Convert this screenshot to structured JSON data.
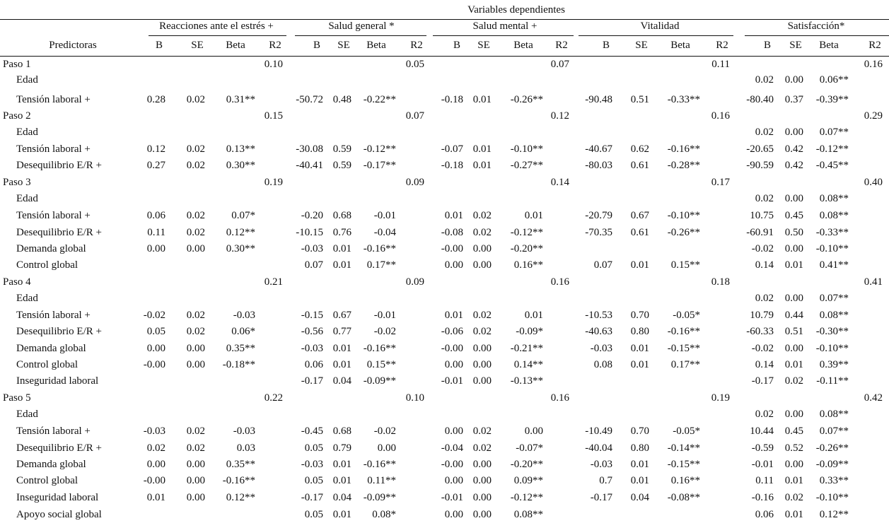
{
  "table": {
    "title": "Variables dependientes",
    "predictors_label": "Predictoras",
    "groups": [
      {
        "name": "Reacciones ante el estrés +"
      },
      {
        "name": "Salud general *"
      },
      {
        "name": "Salud mental +"
      },
      {
        "name": "Vitalidad"
      },
      {
        "name": "Satisfacción*"
      }
    ],
    "stat_labels": [
      "B",
      "SE",
      "Beta",
      "R2"
    ],
    "rows": [
      {
        "label": "Paso 1",
        "step": true,
        "r2": [
          "0.10",
          "0.05",
          "0.07",
          "0.11",
          "0.16"
        ]
      },
      {
        "label": "Edad",
        "vals": [
          null,
          null,
          null,
          null,
          [
            "0.02",
            "0.00",
            "0.06**"
          ]
        ]
      },
      {
        "label": "Tensión laboral +",
        "vals": [
          [
            "0.28",
            "0.02",
            "0.31**"
          ],
          [
            "-50.72",
            "0.48",
            "-0.22**"
          ],
          [
            "-0.18",
            "0.01",
            "-0.26**"
          ],
          [
            "-90.48",
            "0.51",
            "-0.33**"
          ],
          [
            "-80.40",
            "0.37",
            "-0.39**"
          ]
        ]
      },
      {
        "label": "Paso 2",
        "step": true,
        "r2": [
          "0.15",
          "0.07",
          "0.12",
          "0.16",
          "0.29"
        ]
      },
      {
        "label": "Edad",
        "vals": [
          null,
          null,
          null,
          null,
          [
            "0.02",
            "0.00",
            "0.07**"
          ]
        ]
      },
      {
        "label": "Tensión laboral +",
        "vals": [
          [
            "0.12",
            "0.02",
            "0.13**"
          ],
          [
            "-30.08",
            "0.59",
            "-0.12**"
          ],
          [
            "-0.07",
            "0.01",
            "-0.10**"
          ],
          [
            "-40.67",
            "0.62",
            "-0.16**"
          ],
          [
            "-20.65",
            "0.42",
            "-0.12**"
          ]
        ]
      },
      {
        "label": "Desequilibrio E/R +",
        "vals": [
          [
            "0.27",
            "0.02",
            "0.30**"
          ],
          [
            "-40.41",
            "0.59",
            "-0.17**"
          ],
          [
            "-0.18",
            "0.01",
            "-0.27**"
          ],
          [
            "-80.03",
            "0.61",
            "-0.28**"
          ],
          [
            "-90.59",
            "0.42",
            "-0.45**"
          ]
        ]
      },
      {
        "label": "Paso 3",
        "step": true,
        "r2": [
          "0.19",
          "0.09",
          "0.14",
          "0.17",
          "0.40"
        ]
      },
      {
        "label": "Edad",
        "vals": [
          null,
          null,
          null,
          null,
          [
            "0.02",
            "0.00",
            "0.08**"
          ]
        ]
      },
      {
        "label": "Tensión laboral +",
        "vals": [
          [
            "0.06",
            "0.02",
            "0.07*"
          ],
          [
            "-0.20",
            "0.68",
            "-0.01"
          ],
          [
            "0.01",
            "0.02",
            "0.01"
          ],
          [
            "-20.79",
            "0.67",
            "-0.10**"
          ],
          [
            "10.75",
            "0.45",
            "0.08**"
          ]
        ]
      },
      {
        "label": "Desequilibrio E/R +",
        "vals": [
          [
            "0.11",
            "0.02",
            "0.12**"
          ],
          [
            "-10.15",
            "0.76",
            "-0.04"
          ],
          [
            "-0.08",
            "0.02",
            "-0.12**"
          ],
          [
            "-70.35",
            "0.61",
            "-0.26**"
          ],
          [
            "-60.91",
            "0.50",
            "-0.33**"
          ]
        ]
      },
      {
        "label": "Demanda global",
        "vals": [
          [
            "0.00",
            "0.00",
            "0.30**"
          ],
          [
            "-0.03",
            "0.01",
            "-0.16**"
          ],
          [
            "-0.00",
            "0.00",
            "-0.20**"
          ],
          null,
          [
            "-0.02",
            "0.00",
            "-0.10**"
          ]
        ]
      },
      {
        "label": "Control global",
        "vals": [
          null,
          [
            "0.07",
            "0.01",
            "0.17**"
          ],
          [
            "0.00",
            "0.00",
            "0.16**"
          ],
          [
            "0.07",
            "0.01",
            "0.15**"
          ],
          [
            "0.14",
            "0.01",
            "0.41**"
          ]
        ]
      },
      {
        "label": "Paso 4",
        "step": true,
        "r2": [
          "0.21",
          "0.09",
          "0.16",
          "0.18",
          "0.41"
        ]
      },
      {
        "label": "Edad",
        "vals": [
          null,
          null,
          null,
          null,
          [
            "0.02",
            "0.00",
            "0.07**"
          ]
        ]
      },
      {
        "label": "Tensión laboral +",
        "vals": [
          [
            "-0.02",
            "0.02",
            "-0.03"
          ],
          [
            "-0.15",
            "0.67",
            "-0.01"
          ],
          [
            "0.01",
            "0.02",
            "0.01"
          ],
          [
            "-10.53",
            "0.70",
            "-0.05*"
          ],
          [
            "10.79",
            "0.44",
            "0.08**"
          ]
        ]
      },
      {
        "label": "Desequilibrio E/R +",
        "vals": [
          [
            "0.05",
            "0.02",
            "0.06*"
          ],
          [
            "-0.56",
            "0.77",
            "-0.02"
          ],
          [
            "-0.06",
            "0.02",
            "-0.09*"
          ],
          [
            "-40.63",
            "0.80",
            "-0.16**"
          ],
          [
            "-60.33",
            "0.51",
            "-0.30**"
          ]
        ]
      },
      {
        "label": "Demanda global",
        "vals": [
          [
            "0.00",
            "0.00",
            "0.35**"
          ],
          [
            "-0.03",
            "0.01",
            "-0.16**"
          ],
          [
            "-0.00",
            "0.00",
            "-0.21**"
          ],
          [
            "-0.03",
            "0.01",
            "-0.15**"
          ],
          [
            "-0.02",
            "0.00",
            "-0.10**"
          ]
        ]
      },
      {
        "label": "Control global",
        "vals": [
          [
            "-0.00",
            "0.00",
            "-0.18**"
          ],
          [
            "0.06",
            "0.01",
            "0.15**"
          ],
          [
            "0.00",
            "0.00",
            "0.14**"
          ],
          [
            "0.08",
            "0.01",
            "0.17**"
          ],
          [
            "0.14",
            "0.01",
            "0.39**"
          ]
        ]
      },
      {
        "label": "Inseguridad laboral",
        "vals": [
          null,
          [
            "-0.17",
            "0.04",
            "-0.09**"
          ],
          [
            "-0.01",
            "0.00",
            "-0.13**"
          ],
          null,
          [
            "-0.17",
            "0.02",
            "-0.11**"
          ]
        ]
      },
      {
        "label": "Paso 5",
        "step": true,
        "r2": [
          "0.22",
          "0.10",
          "0.16",
          "0.19",
          "0.42"
        ]
      },
      {
        "label": "Edad",
        "vals": [
          null,
          null,
          null,
          null,
          [
            "0.02",
            "0.00",
            "0.08**"
          ]
        ]
      },
      {
        "label": "Tensión laboral +",
        "vals": [
          [
            "-0.03",
            "0.02",
            "-0.03"
          ],
          [
            "-0.45",
            "0.68",
            "-0.02"
          ],
          [
            "0.00",
            "0.02",
            "0.00"
          ],
          [
            "-10.49",
            "0.70",
            "-0.05*"
          ],
          [
            "10.44",
            "0.45",
            "0.07**"
          ]
        ]
      },
      {
        "label": "Desequilibrio E/R +",
        "vals": [
          [
            "0.02",
            "0.02",
            "0.03"
          ],
          [
            "0.05",
            "0.79",
            "0.00"
          ],
          [
            "-0.04",
            "0.02",
            "-0.07*"
          ],
          [
            "-40.04",
            "0.80",
            "-0.14**"
          ],
          [
            "-0.59",
            "0.52",
            "-0.26**"
          ]
        ]
      },
      {
        "label": "Demanda global",
        "vals": [
          [
            "0.00",
            "0.00",
            "0.35**"
          ],
          [
            "-0.03",
            "0.01",
            "-0.16**"
          ],
          [
            "-0.00",
            "0.00",
            "-0.20**"
          ],
          [
            "-0.03",
            "0.01",
            "-0.15**"
          ],
          [
            "-0.01",
            "0.00",
            "-0.09**"
          ]
        ]
      },
      {
        "label": "Control global",
        "vals": [
          [
            "-0.00",
            "0.00",
            "-0.16**"
          ],
          [
            "0.05",
            "0.01",
            "0.11**"
          ],
          [
            "0.00",
            "0.00",
            "0.09**"
          ],
          [
            "0.7",
            "0.01",
            "0.16**"
          ],
          [
            "0.11",
            "0.01",
            "0.33**"
          ]
        ]
      },
      {
        "label": "Inseguridad laboral",
        "vals": [
          [
            "0.01",
            "0.00",
            "0.12**"
          ],
          [
            "-0.17",
            "0.04",
            "-0.09**"
          ],
          [
            "-0.01",
            "0.00",
            "-0.12**"
          ],
          [
            "-0.17",
            "0.04",
            "-0.08**"
          ],
          [
            "-0.16",
            "0.02",
            "-0.10**"
          ]
        ]
      },
      {
        "label": "Apoyo social global",
        "vals": [
          null,
          [
            "0.05",
            "0.01",
            "0.08*"
          ],
          [
            "0.00",
            "0.00",
            "0.08**"
          ],
          null,
          [
            "0.06",
            "0.01",
            "0.12**"
          ]
        ]
      }
    ]
  }
}
